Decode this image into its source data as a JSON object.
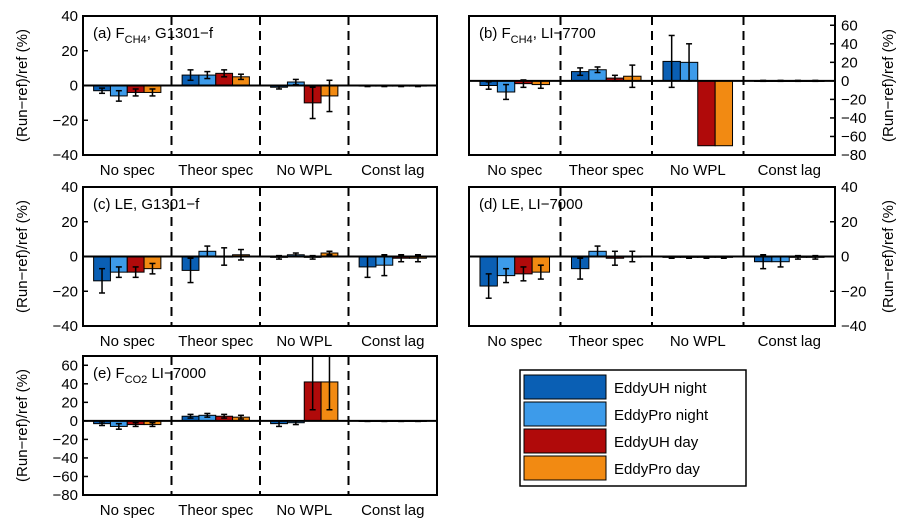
{
  "chart_data": {
    "type": "bar",
    "categories": [
      "No spec",
      "Theor spec",
      "No WPL",
      "Const lag"
    ],
    "series_names": [
      "EddyUH night",
      "EddyPro night",
      "EddyUH day",
      "EddyPro day"
    ],
    "colors": {
      "EddyUH night": "#0a5fb4",
      "EddyPro night": "#3d9bea",
      "EddyUH day": "#b00a0a",
      "EddyPro day": "#f28a12"
    },
    "ylabel": "(Run−ref)/ref (%)",
    "grid": false,
    "legend": "bottom-right",
    "panels": [
      {
        "id": "a",
        "title": "(a) F",
        "title_sub": "CH4",
        "title_rest": ", G1301−f",
        "ylim": [
          -40,
          40
        ],
        "yticks": [
          -40,
          -20,
          0,
          20,
          40
        ],
        "ytick_labels": [
          "−40",
          "−20",
          "0",
          "20",
          "40"
        ],
        "yaxis_side": "left",
        "values": [
          [
            -3,
            -6,
            -4,
            -4
          ],
          [
            6,
            6,
            7,
            5
          ],
          [
            -1,
            2,
            -10,
            -6
          ],
          [
            -0.3,
            -0.3,
            -0.3,
            -0.3
          ]
        ],
        "errors": [
          [
            1.5,
            3,
            2,
            2
          ],
          [
            3,
            2,
            2,
            1.5
          ],
          [
            1,
            1.5,
            9,
            9
          ],
          [
            0.3,
            0.3,
            0.3,
            0.3
          ]
        ]
      },
      {
        "id": "b",
        "title": "(b) F",
        "title_sub": "CH4",
        "title_rest": ", LI−7700",
        "ylim": [
          -80,
          70
        ],
        "yticks": [
          -80,
          -60,
          -40,
          -20,
          0,
          20,
          40,
          60
        ],
        "ytick_labels": [
          "−80",
          "−60",
          "−40",
          "−20",
          "0",
          "20",
          "40",
          "60"
        ],
        "yaxis_side": "right",
        "values": [
          [
            -5,
            -12,
            -3,
            -4
          ],
          [
            10,
            12,
            3,
            5
          ],
          [
            21,
            20,
            -70,
            -70
          ],
          [
            0,
            0,
            0,
            0
          ]
        ],
        "errors": [
          [
            4,
            8,
            4,
            4
          ],
          [
            4,
            3,
            3,
            12
          ],
          [
            28,
            20,
            0,
            0
          ],
          [
            0.5,
            0.5,
            0.5,
            0.5
          ]
        ]
      },
      {
        "id": "c",
        "title": "(c) LE, G1301−f",
        "title_sub": "",
        "title_rest": "",
        "ylim": [
          -40,
          40
        ],
        "yticks": [
          -40,
          -20,
          0,
          20,
          40
        ],
        "ytick_labels": [
          "−40",
          "−20",
          "0",
          "20",
          "40"
        ],
        "yaxis_side": "left",
        "values": [
          [
            -14,
            -9,
            -9,
            -7
          ],
          [
            -8,
            3,
            0,
            1
          ],
          [
            -0.5,
            1,
            -0.5,
            2
          ],
          [
            -6,
            -5,
            -1,
            -1
          ]
        ],
        "errors": [
          [
            7,
            3,
            3,
            3
          ],
          [
            7,
            3,
            5,
            3
          ],
          [
            1,
            1,
            1,
            1
          ],
          [
            6,
            6,
            2,
            2
          ]
        ]
      },
      {
        "id": "d",
        "title": "(d) LE, LI−7000",
        "title_sub": "",
        "title_rest": "",
        "ylim": [
          -40,
          40
        ],
        "yticks": [
          -40,
          -20,
          0,
          20,
          40
        ],
        "ytick_labels": [
          "−40",
          "−20",
          "0",
          "20",
          "40"
        ],
        "yaxis_side": "right",
        "values": [
          [
            -17,
            -11,
            -10,
            -9
          ],
          [
            -7,
            3,
            -1,
            0
          ],
          [
            -0.5,
            -0.5,
            -0.5,
            -0.5
          ],
          [
            -3,
            -3,
            -0.5,
            -0.5
          ]
        ],
        "errors": [
          [
            7,
            4,
            4,
            4
          ],
          [
            6,
            3,
            4,
            3
          ],
          [
            0.5,
            0.5,
            0.5,
            0.5
          ],
          [
            4,
            3,
            1,
            1
          ]
        ]
      },
      {
        "id": "e",
        "title": "(e) F",
        "title_sub": "CO2",
        "title_rest": " LI−7000",
        "ylim": [
          -80,
          70
        ],
        "yticks": [
          -80,
          -60,
          -40,
          -20,
          0,
          20,
          40,
          60
        ],
        "ytick_labels": [
          "−80",
          "−60",
          "−40",
          "−20",
          "0",
          "20",
          "40",
          "60"
        ],
        "yaxis_side": "left",
        "values": [
          [
            -3,
            -6,
            -4,
            -4
          ],
          [
            5,
            6,
            5,
            4
          ],
          [
            -3,
            -2,
            42,
            42
          ],
          [
            -0.3,
            -0.3,
            -0.3,
            -0.3
          ]
        ],
        "errors": [
          [
            2,
            3,
            2,
            2
          ],
          [
            2,
            2,
            2,
            2
          ],
          [
            3,
            2,
            30,
            30
          ],
          [
            0.3,
            0.3,
            0.3,
            0.3
          ]
        ]
      }
    ]
  }
}
